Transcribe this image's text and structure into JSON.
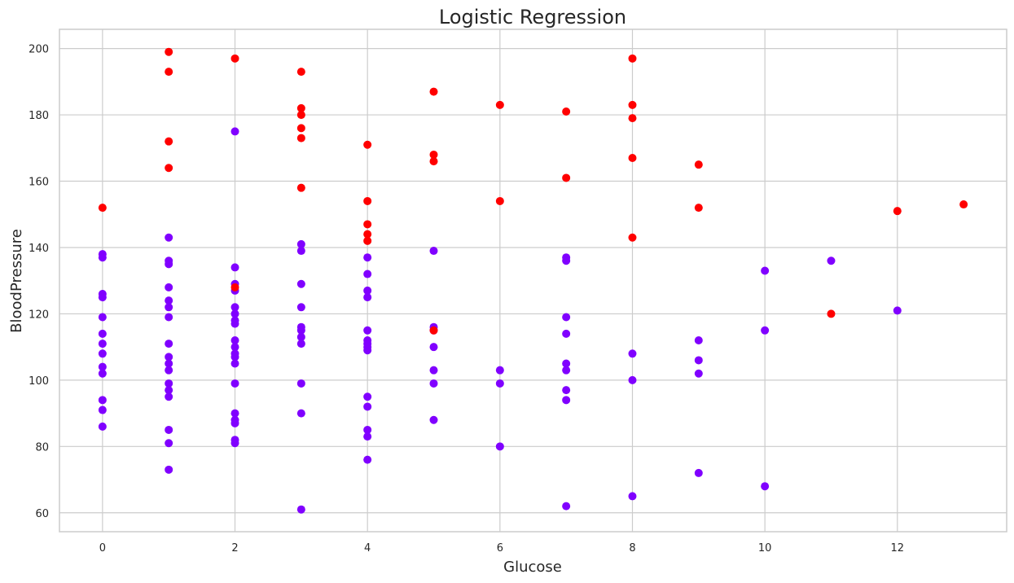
{
  "chart_data": {
    "type": "scatter",
    "title": "Logistic Regression",
    "xlabel": "Glucose",
    "ylabel": "BloodPressure",
    "xlim": [
      -0.65,
      13.65
    ],
    "ylim": [
      54.3,
      205.8
    ],
    "xticks": [
      0,
      2,
      4,
      6,
      8,
      10,
      12
    ],
    "yticks": [
      60,
      80,
      100,
      120,
      140,
      160,
      180,
      200
    ],
    "grid": true,
    "colors": {
      "class_0": "#8000ff",
      "class_1": "#ff0000"
    },
    "series": [
      {
        "color": "#8000ff",
        "points": [
          [
            0,
            138
          ],
          [
            0,
            137
          ],
          [
            0,
            126
          ],
          [
            0,
            125
          ],
          [
            0,
            119
          ],
          [
            0,
            114
          ],
          [
            0,
            111
          ],
          [
            0,
            108
          ],
          [
            0,
            104
          ],
          [
            0,
            102
          ],
          [
            0,
            94
          ],
          [
            0,
            91
          ],
          [
            0,
            86
          ],
          [
            1,
            143
          ],
          [
            1,
            136
          ],
          [
            1,
            135
          ],
          [
            1,
            128
          ],
          [
            1,
            124
          ],
          [
            1,
            122
          ],
          [
            1,
            119
          ],
          [
            1,
            111
          ],
          [
            1,
            107
          ],
          [
            1,
            105
          ],
          [
            1,
            103
          ],
          [
            1,
            99
          ],
          [
            1,
            97
          ],
          [
            1,
            95
          ],
          [
            1,
            85
          ],
          [
            1,
            81
          ],
          [
            1,
            73
          ],
          [
            2,
            175
          ],
          [
            2,
            134
          ],
          [
            2,
            129
          ],
          [
            2,
            127
          ],
          [
            2,
            122
          ],
          [
            2,
            120
          ],
          [
            2,
            118
          ],
          [
            2,
            117
          ],
          [
            2,
            112
          ],
          [
            2,
            110
          ],
          [
            2,
            108
          ],
          [
            2,
            107
          ],
          [
            2,
            105
          ],
          [
            2,
            99
          ],
          [
            2,
            90
          ],
          [
            2,
            88
          ],
          [
            2,
            87
          ],
          [
            2,
            82
          ],
          [
            2,
            81
          ],
          [
            3,
            141
          ],
          [
            3,
            139
          ],
          [
            3,
            129
          ],
          [
            3,
            122
          ],
          [
            3,
            116
          ],
          [
            3,
            115
          ],
          [
            3,
            113
          ],
          [
            3,
            111
          ],
          [
            3,
            99
          ],
          [
            3,
            90
          ],
          [
            3,
            61
          ],
          [
            4,
            137
          ],
          [
            4,
            132
          ],
          [
            4,
            127
          ],
          [
            4,
            125
          ],
          [
            4,
            115
          ],
          [
            4,
            112
          ],
          [
            4,
            111
          ],
          [
            4,
            110
          ],
          [
            4,
            109
          ],
          [
            4,
            95
          ],
          [
            4,
            92
          ],
          [
            4,
            85
          ],
          [
            4,
            83
          ],
          [
            4,
            76
          ],
          [
            5,
            139
          ],
          [
            5,
            116
          ],
          [
            5,
            115
          ],
          [
            5,
            110
          ],
          [
            5,
            103
          ],
          [
            5,
            99
          ],
          [
            5,
            88
          ],
          [
            6,
            103
          ],
          [
            6,
            99
          ],
          [
            6,
            80
          ],
          [
            7,
            137
          ],
          [
            7,
            136
          ],
          [
            7,
            119
          ],
          [
            7,
            114
          ],
          [
            7,
            105
          ],
          [
            7,
            103
          ],
          [
            7,
            97
          ],
          [
            7,
            94
          ],
          [
            7,
            62
          ],
          [
            8,
            108
          ],
          [
            8,
            100
          ],
          [
            8,
            65
          ],
          [
            9,
            112
          ],
          [
            9,
            106
          ],
          [
            9,
            102
          ],
          [
            9,
            72
          ],
          [
            10,
            133
          ],
          [
            10,
            115
          ],
          [
            10,
            68
          ],
          [
            11,
            136
          ],
          [
            12,
            121
          ]
        ]
      },
      {
        "color": "#ff0000",
        "points": [
          [
            0,
            152
          ],
          [
            1,
            199
          ],
          [
            1,
            193
          ],
          [
            1,
            172
          ],
          [
            1,
            164
          ],
          [
            2,
            197
          ],
          [
            2,
            128
          ],
          [
            3,
            193
          ],
          [
            3,
            182
          ],
          [
            3,
            180
          ],
          [
            3,
            176
          ],
          [
            3,
            173
          ],
          [
            3,
            158
          ],
          [
            4,
            171
          ],
          [
            4,
            154
          ],
          [
            4,
            147
          ],
          [
            4,
            144
          ],
          [
            4,
            142
          ],
          [
            5,
            187
          ],
          [
            5,
            168
          ],
          [
            5,
            166
          ],
          [
            5,
            115
          ],
          [
            6,
            183
          ],
          [
            6,
            154
          ],
          [
            7,
            181
          ],
          [
            7,
            161
          ],
          [
            8,
            197
          ],
          [
            8,
            183
          ],
          [
            8,
            179
          ],
          [
            8,
            167
          ],
          [
            8,
            143
          ],
          [
            9,
            165
          ],
          [
            9,
            152
          ],
          [
            11,
            120
          ],
          [
            12,
            151
          ],
          [
            13,
            153
          ]
        ]
      }
    ]
  }
}
